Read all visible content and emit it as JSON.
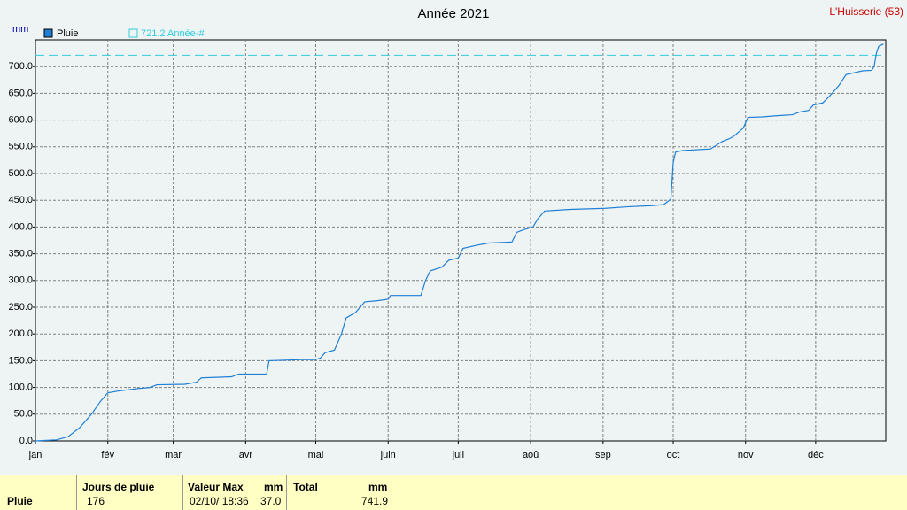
{
  "chart_data": {
    "type": "line",
    "title": "Année 2021",
    "station": "L'Huisserie (53)",
    "y_unit": "mm",
    "x": [
      1,
      10,
      15,
      20,
      25,
      29,
      32,
      36,
      45,
      50,
      53,
      65,
      70,
      72,
      85,
      88,
      100,
      101,
      115,
      121,
      123,
      125,
      129,
      132,
      134,
      138,
      142,
      147,
      152,
      153,
      166,
      168,
      170,
      175,
      178,
      182,
      184,
      190,
      195,
      205,
      207,
      210,
      214,
      216,
      219,
      230,
      245,
      255,
      265,
      270,
      273,
      274,
      275,
      278,
      290,
      295,
      298,
      300,
      304,
      306,
      312,
      318,
      325,
      328,
      332,
      334,
      338,
      341,
      345,
      348,
      355,
      359,
      360,
      361,
      362,
      364
    ],
    "series": [
      {
        "name": "Pluie",
        "color": "#1f7fd6",
        "values": [
          0,
          2,
          8,
          25,
          50,
          75,
          90,
          93,
          98,
          100,
          105,
          106,
          110,
          118,
          120,
          125,
          125,
          150,
          152,
          152,
          155,
          165,
          170,
          200,
          230,
          240,
          260,
          262,
          265,
          272,
          272,
          300,
          318,
          325,
          338,
          342,
          360,
          366,
          370,
          372,
          390,
          395,
          400,
          415,
          430,
          433,
          435,
          438,
          440,
          442,
          452,
          520,
          540,
          543,
          546,
          560,
          565,
          570,
          585,
          605,
          606,
          608,
          610,
          615,
          618,
          628,
          632,
          645,
          665,
          685,
          692,
          693,
          700,
          725,
          738,
          742
        ]
      }
    ],
    "reference": {
      "name": "Année-#",
      "value": 721.2,
      "color": "#33ccdd"
    },
    "xlim": [
      1,
      365
    ],
    "xticks": [
      {
        "value": 1,
        "label": "jan"
      },
      {
        "value": 32,
        "label": "fév"
      },
      {
        "value": 60,
        "label": "mar"
      },
      {
        "value": 91,
        "label": "avr"
      },
      {
        "value": 121,
        "label": "mai"
      },
      {
        "value": 152,
        "label": "juin"
      },
      {
        "value": 182,
        "label": "juil"
      },
      {
        "value": 213,
        "label": "aoû"
      },
      {
        "value": 244,
        "label": "sep"
      },
      {
        "value": 274,
        "label": "oct"
      },
      {
        "value": 305,
        "label": "nov"
      },
      {
        "value": 335,
        "label": "déc"
      }
    ],
    "ylim": [
      0,
      750
    ],
    "yticks": [
      {
        "value": 0,
        "label": "0.0"
      },
      {
        "value": 50,
        "label": "50.0"
      },
      {
        "value": 100,
        "label": "100.0"
      },
      {
        "value": 150,
        "label": "150.0"
      },
      {
        "value": 200,
        "label": "200.0"
      },
      {
        "value": 250,
        "label": "250.0"
      },
      {
        "value": 300,
        "label": "300.0"
      },
      {
        "value": 350,
        "label": "350.0"
      },
      {
        "value": 400,
        "label": "400.0"
      },
      {
        "value": 450,
        "label": "450.0"
      },
      {
        "value": 500,
        "label": "500.0"
      },
      {
        "value": 550,
        "label": "550.0"
      },
      {
        "value": 600,
        "label": "600.0"
      },
      {
        "value": 650,
        "label": "650.0"
      },
      {
        "value": 700,
        "label": "700.0"
      }
    ],
    "grid": true
  },
  "table": {
    "row": "Pluie",
    "headers": [
      "Jours de pluie",
      "Valeur Max",
      "mm",
      "Total",
      "mm"
    ],
    "values": [
      "176",
      "02/10/ 18:36",
      "37.0",
      "741.9"
    ]
  }
}
